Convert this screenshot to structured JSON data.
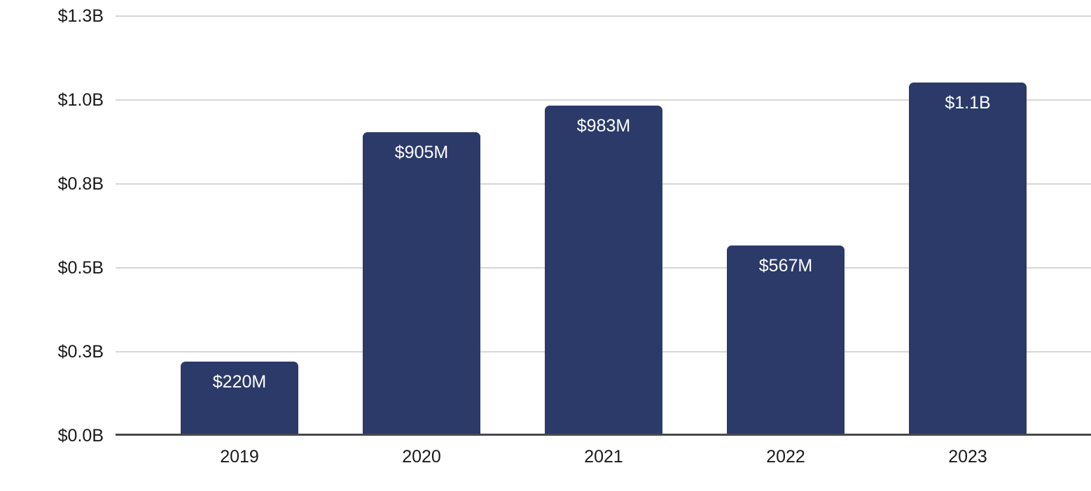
{
  "chart_data": {
    "type": "bar",
    "title": "",
    "categories": [
      "2019",
      "2020",
      "2021",
      "2022",
      "2023"
    ],
    "values_millions_usd": [
      220,
      905,
      983,
      567,
      1053
    ],
    "bar_labels": [
      "$220M",
      "$905M",
      "$983M",
      "$567M",
      "$1.1B"
    ],
    "y_axis": {
      "tick_values_billions": [
        0,
        0.25,
        0.5,
        0.75,
        1.0,
        1.25
      ],
      "tick_labels": [
        "$0.0B",
        "$0.3B",
        "$0.5B",
        "$0.8B",
        "$1.0B",
        "$1.3B"
      ],
      "ylim_billions": [
        0,
        1.3
      ]
    },
    "xlabel": "",
    "ylabel": "",
    "grid": "horizontal",
    "legend": "none",
    "colors": {
      "bar": "#2b3a68",
      "bar_label_text": "#ffffff",
      "gridline": "#d6d6d6",
      "axis_line": "#47494c",
      "tick_text": "#1a1a1a",
      "background": "#ffffff"
    }
  }
}
